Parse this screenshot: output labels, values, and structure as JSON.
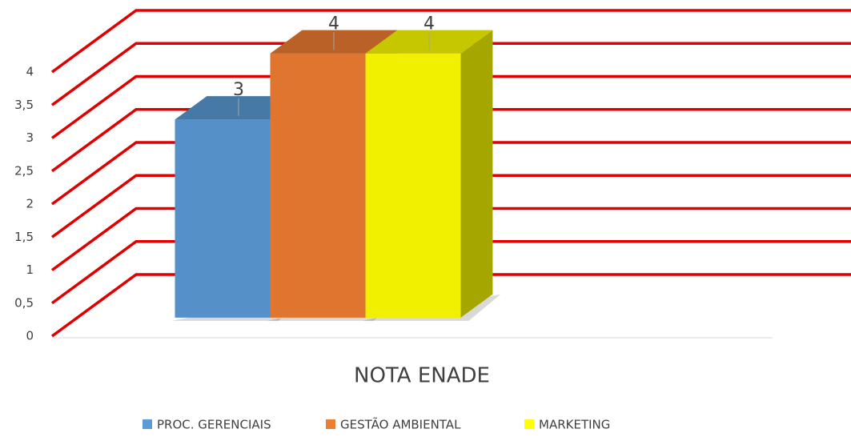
{
  "chart_data": {
    "type": "bar3d",
    "categories": [
      "NOTA ENADE"
    ],
    "series": [
      {
        "name": "PROC. GERENCIAIS",
        "color": "#5b9bd5",
        "values": [
          3
        ]
      },
      {
        "name": "GESTÃO AMBIENTAL",
        "color": "#ed7d31",
        "values": [
          4
        ]
      },
      {
        "name": "MARKETING",
        "color": "#ffff00",
        "values": [
          4
        ]
      }
    ],
    "ylim": [
      0,
      4
    ],
    "yticks": [
      0,
      {
        "value": 0.5,
        "label": "0,5"
      },
      1,
      {
        "value": 1.5,
        "label": "1,5"
      },
      2,
      {
        "value": 2.5,
        "label": "2,5"
      },
      3,
      {
        "value": 3.5,
        "label": "3,5"
      },
      4
    ],
    "grid": true,
    "grid_color": "#e00000",
    "legend": "bottom"
  }
}
